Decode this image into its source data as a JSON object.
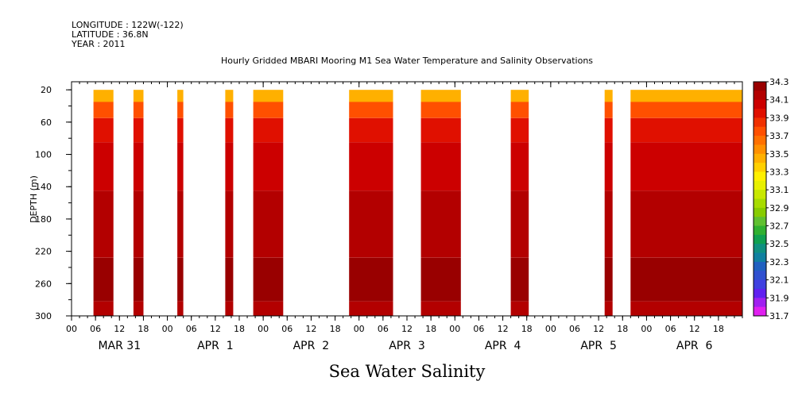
{
  "header": {
    "longitude": "LONGITUDE : 122W(-122)",
    "latitude": "LATITUDE : 36.8N",
    "year": "YEAR : 2011"
  },
  "chart_data": {
    "type": "heatmap",
    "title": "Hourly Gridded MBARI Mooring M1 Sea Water Temperature and Salinity Observations",
    "subtitle": "Sea Water Salinity",
    "ylabel": "DEPTH (m)",
    "y_reversed": true,
    "ylim": [
      10,
      300
    ],
    "yticks": [
      20,
      60,
      100,
      140,
      180,
      220,
      260,
      300
    ],
    "xlim_hours": [
      0,
      168
    ],
    "x_tick_labels": [
      "00",
      "06",
      "12",
      "18",
      "00",
      "06",
      "12",
      "18",
      "00",
      "06",
      "12",
      "18",
      "00",
      "06",
      "12",
      "18",
      "00",
      "06",
      "12",
      "18",
      "00",
      "06",
      "12",
      "18",
      "00",
      "06",
      "12",
      "18"
    ],
    "day_labels": [
      "MAR 31",
      "APR  1",
      "APR  2",
      "APR  3",
      "APR  4",
      "APR  5",
      "APR  6"
    ],
    "colorbar": {
      "levels": [
        "34.3",
        "34.1",
        "33.9",
        "33.7",
        "33.5",
        "33.3",
        "33.1",
        "32.9",
        "32.7",
        "32.5",
        "32.3",
        "32.1",
        "31.9",
        "31.7"
      ],
      "colors": [
        "#990000",
        "#b30000",
        "#cc0000",
        "#e01000",
        "#f03000",
        "#ff5000",
        "#ff7000",
        "#ff9000",
        "#ffb000",
        "#ffd000",
        "#fff000",
        "#e8f000",
        "#c8e800",
        "#a8dc00",
        "#88cc00",
        "#60c030",
        "#30b030",
        "#10a050",
        "#109080",
        "#1080a0",
        "#2060c0",
        "#3050d0",
        "#4040e0",
        "#6020f0",
        "#a020f0",
        "#e020f0"
      ]
    },
    "depth_bands": [
      {
        "from": 20,
        "to": 35,
        "value": 33.4
      },
      {
        "from": 35,
        "to": 55,
        "value": 33.75
      },
      {
        "from": 55,
        "to": 85,
        "value": 33.9
      },
      {
        "from": 85,
        "to": 145,
        "value": 34.0
      },
      {
        "from": 145,
        "to": 228,
        "value": 34.1
      },
      {
        "from": 228,
        "to": 282,
        "value": 34.25
      },
      {
        "from": 282,
        "to": 300,
        "value": 34.15
      }
    ],
    "data_segments_hours": [
      [
        5.5,
        10.5
      ],
      [
        15.5,
        18
      ],
      [
        26.5,
        28
      ],
      [
        38.5,
        40.5
      ],
      [
        45.5,
        53
      ],
      [
        69.5,
        80.5
      ],
      [
        87.5,
        97.5
      ],
      [
        110,
        114.5
      ],
      [
        133.5,
        135.5
      ],
      [
        140,
        168
      ]
    ]
  }
}
